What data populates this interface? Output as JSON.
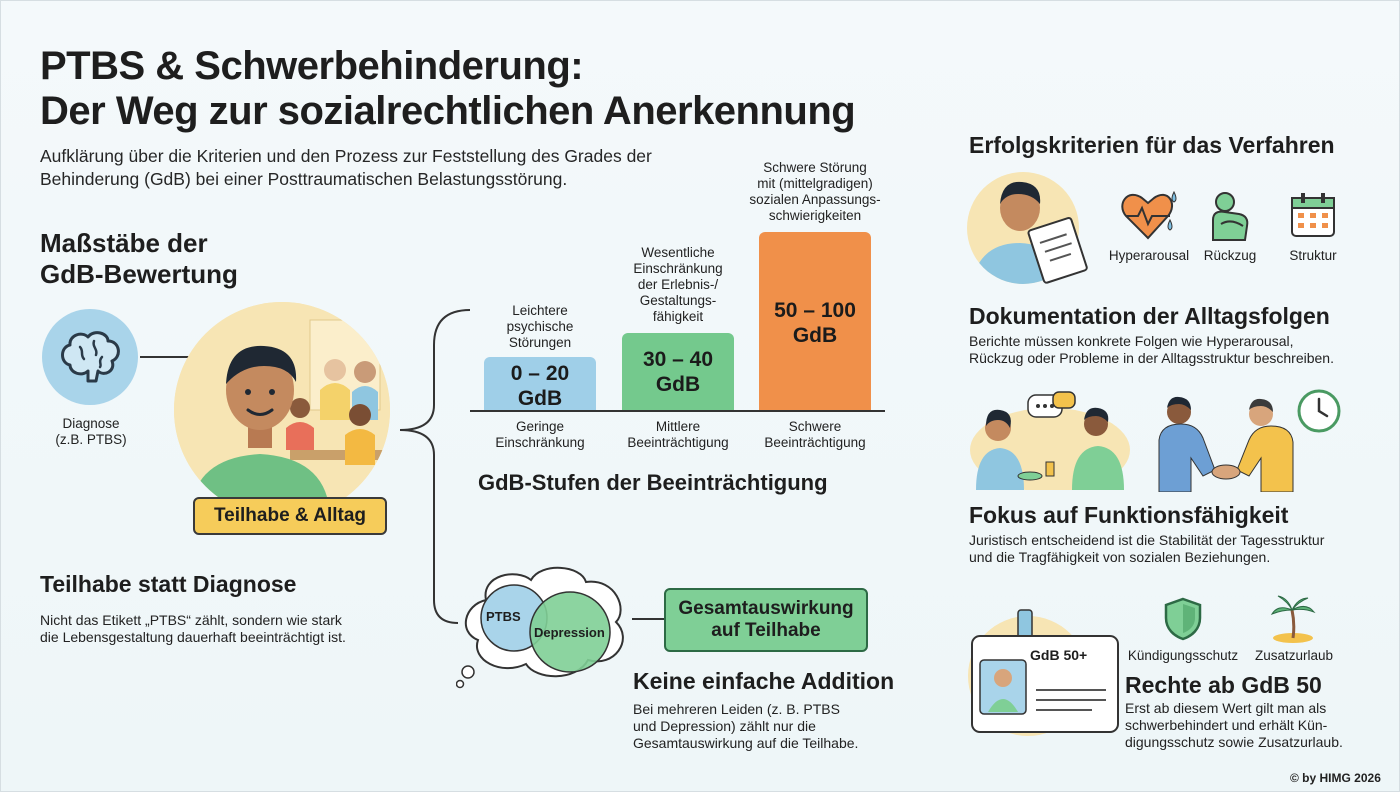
{
  "title": {
    "line1": "PTBS & Schwerbehinderung:",
    "line2": "Der Weg zur sozialrechtlichen Anerkennung",
    "subtitle_line1": "Aufklärung über die Kriterien und den Prozess zur Feststellung des Grades der",
    "subtitle_line2": "Behinderung (GdB) bei einer Posttraumatischen Belastungsstörung."
  },
  "left": {
    "heading_line1": "Maßstäbe der",
    "heading_line2": "GdB-Bewertung",
    "diagnosis_line1": "Diagnose",
    "diagnosis_line2": "(z.B. PTBS)",
    "participation_badge": "Teilhabe & Alltag",
    "section_title": "Teilhabe statt Diagnose",
    "section_text_line1": "Nicht das Etikett „PTBS“ zählt, sondern wie stark",
    "section_text_line2": "die Lebensgestaltung dauerhaft beeinträchtigt ist."
  },
  "gdb_levels": {
    "title": "GdB-Stufen der Beeinträchtigung",
    "levels": [
      {
        "above": [
          "Leichtere",
          "psychische",
          "Störungen"
        ],
        "value_line1": "0 – 20",
        "value_line2": "GdB",
        "below": [
          "Geringe",
          "Einschränkung"
        ],
        "color": "#9fcfe8"
      },
      {
        "above": [
          "Wesentliche",
          "Einschränkung",
          "der Erlebnis-/",
          "Gestaltungs-",
          "fähigkeit"
        ],
        "value_line1": "30 – 40",
        "value_line2": "GdB",
        "below": [
          "Mittlere",
          "Beeinträchtigung"
        ],
        "color": "#74c98d"
      },
      {
        "above": [
          "Schwere Störung",
          "mit (mittelgradigen)",
          "sozialen Anpassungs-",
          "schwierigkeiten"
        ],
        "value_line1": "50 – 100",
        "value_line2": "GdB",
        "below": [
          "Schwere",
          "Beeinträchtigung"
        ],
        "color": "#f0904a"
      }
    ]
  },
  "addition": {
    "circle1": "PTBS",
    "circle2": "Depression",
    "result_line1": "Gesamtauswirkung",
    "result_line2": "auf Teilhabe",
    "title": "Keine einfache Addition",
    "text_line1": "Bei mehreren Leiden (z. B. PTBS",
    "text_line2": "und Depression) zählt nur die",
    "text_line3": "Gesamtauswirkung auf die Teilhabe."
  },
  "right": {
    "heading": "Erfolgskriterien für das Verfahren",
    "icons": [
      "Hyperarousal",
      "Rückzug",
      "Struktur"
    ],
    "doc_title": "Dokumentation der Alltagsfolgen",
    "doc_text_line1": "Berichte müssen konkrete Folgen wie Hyperarousal,",
    "doc_text_line2": "Rückzug oder Probleme in der Alltagsstruktur beschreiben.",
    "func_title": "Fokus auf Funktionsfähigkeit",
    "func_text_line1": "Juristisch entscheidend ist die Stabilität der Tagesstruktur",
    "func_text_line2": "und die Tragfähigkeit von sozialen Beziehungen.",
    "card_label": "GdB 50+",
    "benefit_icons": [
      "Kündigungsschutz",
      "Zusatzurlaub"
    ],
    "rights_title": "Rechte ab GdB 50",
    "rights_text_line1": "Erst ab diesem Wert gilt man als",
    "rights_text_line2": "schwerbehindert und erhält Kün-",
    "rights_text_line3": "digungsschutz sowie Zusatzurlaub."
  },
  "footer": {
    "copyright": "© by HIMG 2026"
  },
  "colors": {
    "yellow": "#f6cc5a",
    "green": "#7fcf96",
    "blue": "#9fcfe8",
    "orange": "#f0904a"
  }
}
